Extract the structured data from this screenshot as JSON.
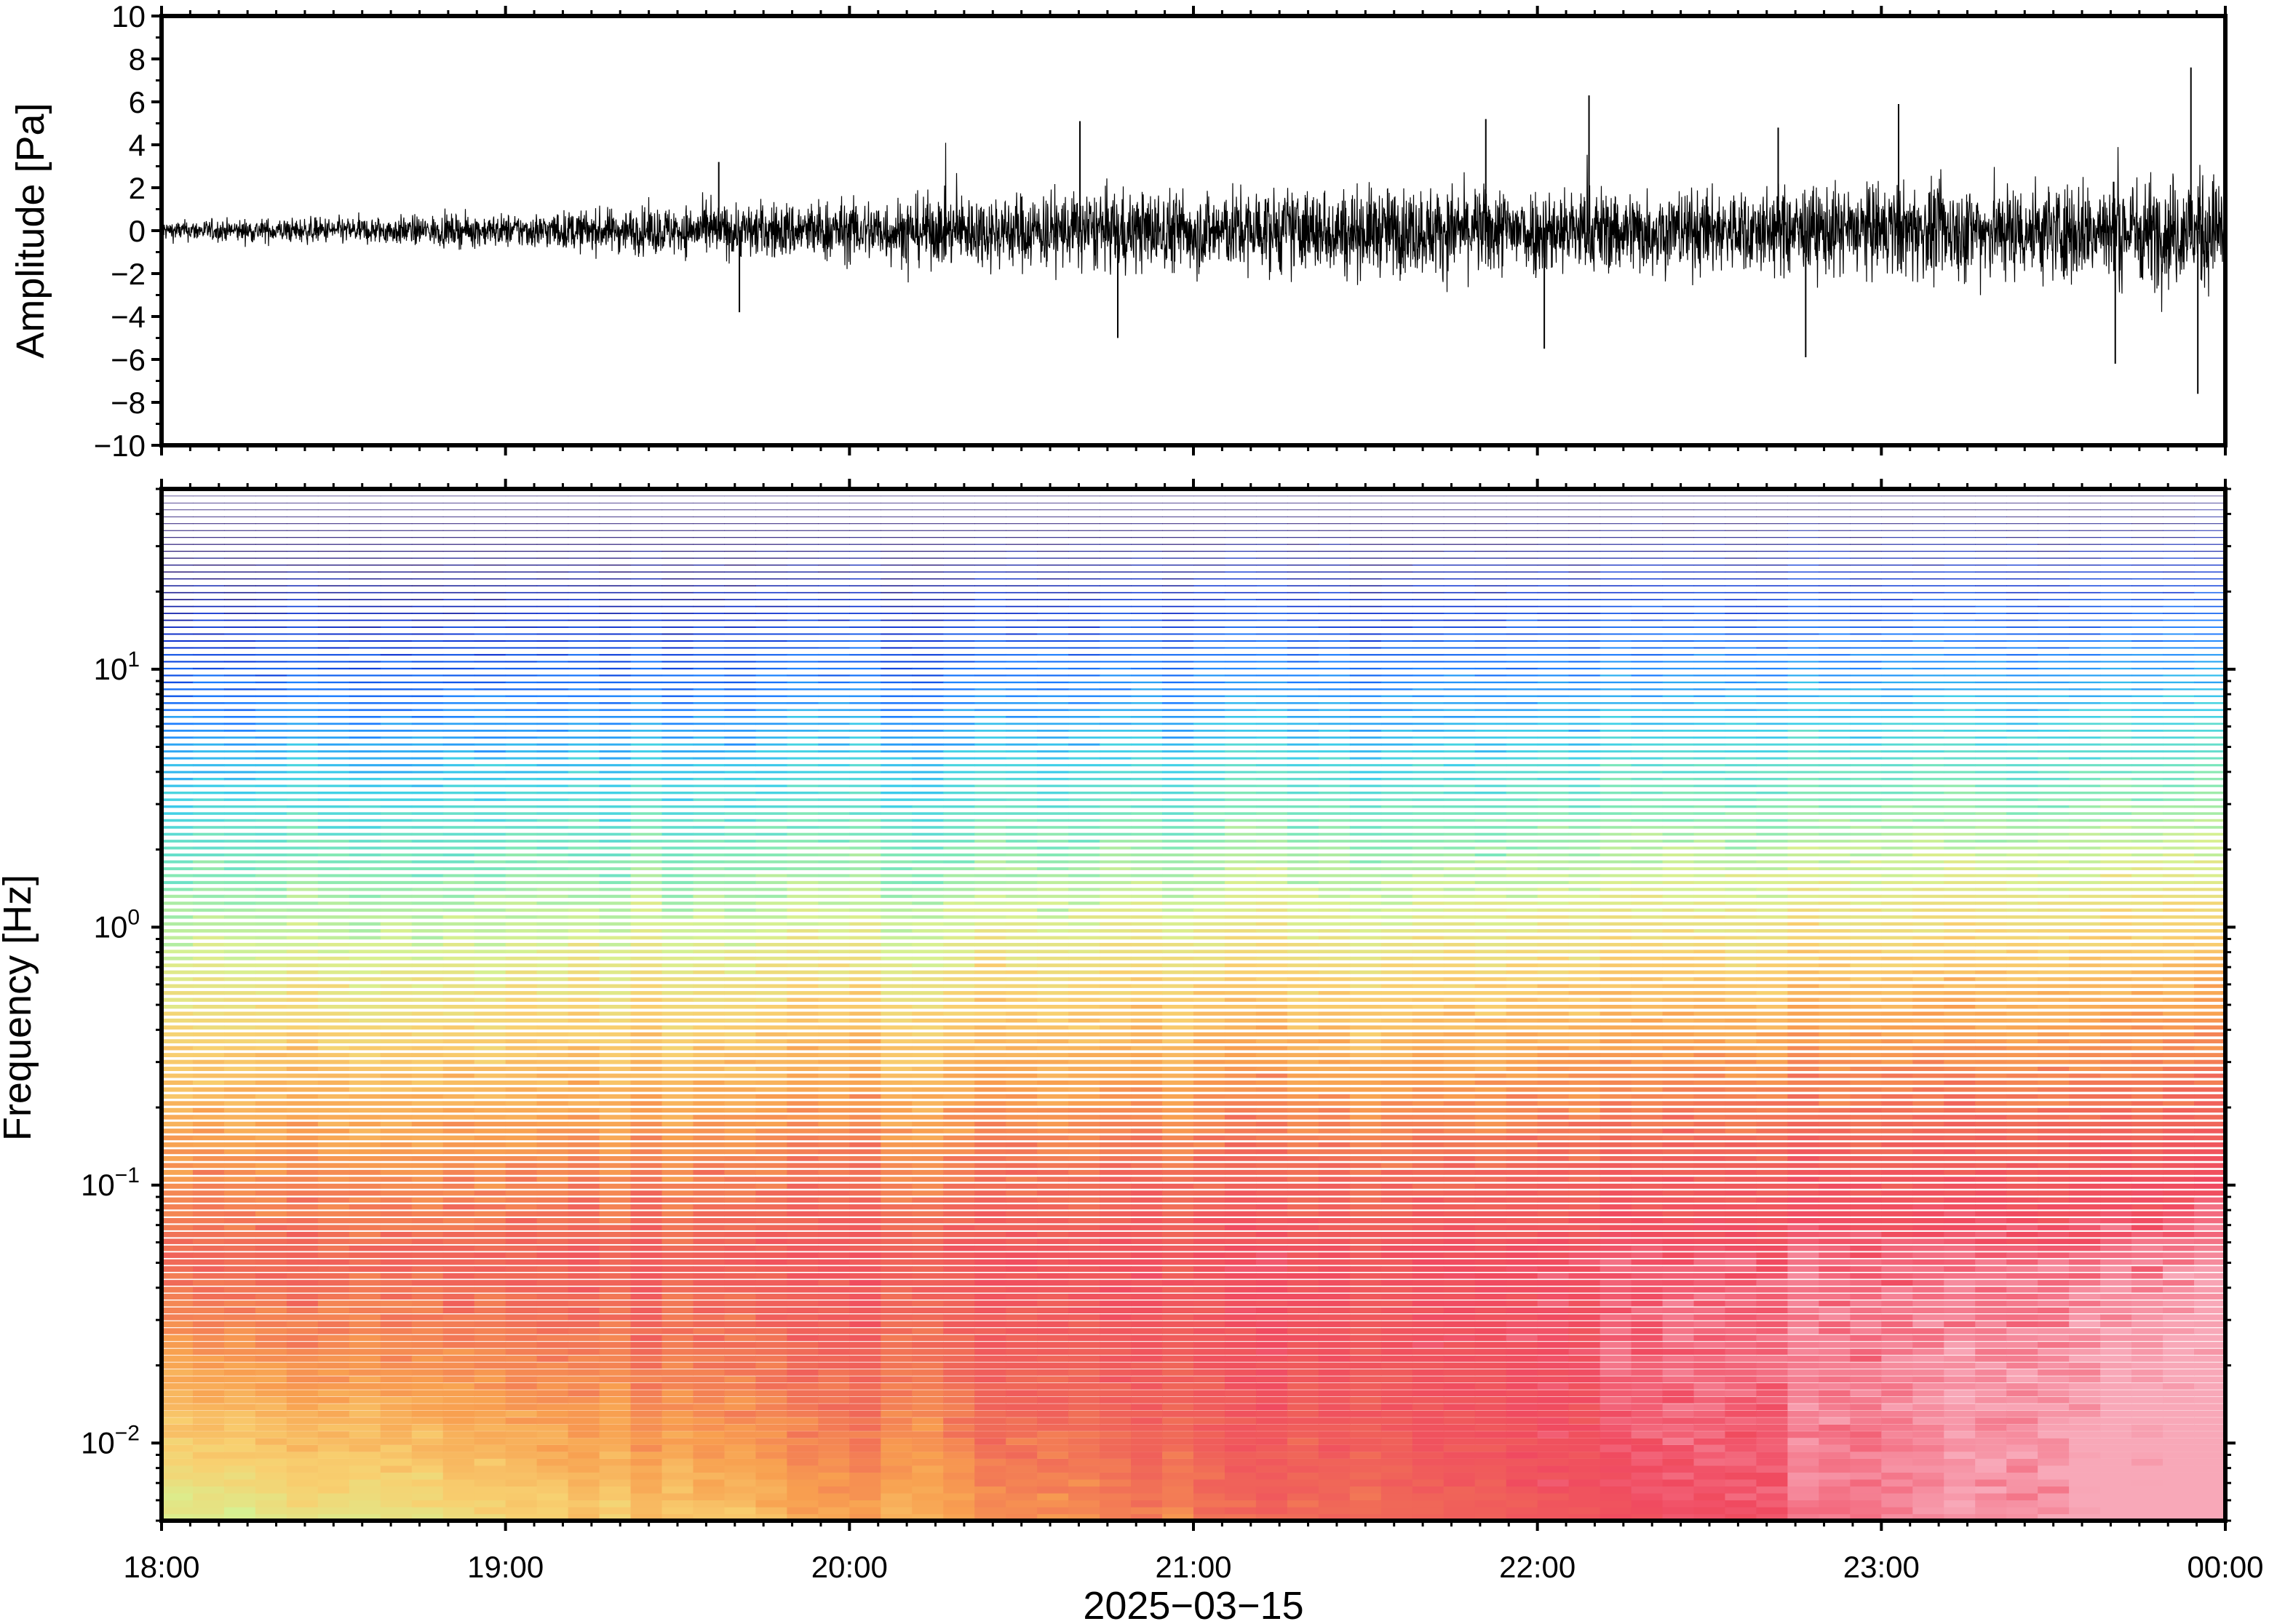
{
  "chart_data": [
    {
      "type": "line",
      "name": "waveform",
      "ylabel": "Amplitude [Pa]",
      "ylim": [
        -10,
        10
      ],
      "yticks": [
        -10,
        -8,
        -6,
        -4,
        -2,
        0,
        2,
        4,
        6,
        8,
        10
      ],
      "ytick_labels": [
        "−10",
        "−8",
        "−6",
        "−4",
        "−2",
        "0",
        "2",
        "4",
        "6",
        "8",
        "10"
      ],
      "x_hours": [
        18,
        24
      ],
      "line_color": "#000000",
      "envelope": {
        "hours": [
          18.0,
          18.5,
          19.0,
          19.5,
          20.0,
          20.5,
          21.0,
          21.5,
          22.0,
          22.5,
          23.0,
          23.5,
          24.0
        ],
        "half_range_pa": [
          0.6,
          0.8,
          1.0,
          1.5,
          1.9,
          2.3,
          2.5,
          2.6,
          2.7,
          2.5,
          2.8,
          3.0,
          3.5
        ]
      },
      "spikes": [
        {
          "hour": 19.62,
          "value": 3.2
        },
        {
          "hour": 19.68,
          "value": -3.8
        },
        {
          "hour": 20.67,
          "value": 5.1
        },
        {
          "hour": 20.78,
          "value": -5.0
        },
        {
          "hour": 21.85,
          "value": 5.2
        },
        {
          "hour": 22.02,
          "value": -5.5
        },
        {
          "hour": 22.15,
          "value": 6.3
        },
        {
          "hour": 22.7,
          "value": 4.8
        },
        {
          "hour": 23.05,
          "value": 5.9
        },
        {
          "hour": 22.78,
          "value": -5.9
        },
        {
          "hour": 23.68,
          "value": -6.2
        },
        {
          "hour": 23.9,
          "value": 7.6
        },
        {
          "hour": 23.92,
          "value": -7.6
        }
      ]
    },
    {
      "type": "heatmap",
      "name": "spectrogram",
      "ylabel": "Frequency [Hz]",
      "yscale": "log",
      "ylim_hz": [
        0.005,
        50
      ],
      "ytick_values": [
        0.01,
        0.1,
        1,
        10
      ],
      "ytick_labels": [
        {
          "base": "10",
          "exp": "−2"
        },
        {
          "base": "10",
          "exp": "−1"
        },
        {
          "base": "10",
          "exp": "0"
        },
        {
          "base": "10",
          "exp": "1"
        }
      ],
      "colormap": "rainbow (dark blue → cyan → yellow → orange → red → pink)",
      "colormap_stops": [
        "#1a0a6e",
        "#0a2fd0",
        "#1e7fff",
        "#3fd0e8",
        "#7fe8b8",
        "#d8f090",
        "#f8d070",
        "#f8a050",
        "#f06858",
        "#f04a60",
        "#f8a8b8"
      ],
      "time_columns": 66,
      "description_level_trend": "power increases with time and toward low frequencies"
    }
  ],
  "x_axis": {
    "tick_labels": [
      "18:00",
      "19:00",
      "20:00",
      "21:00",
      "22:00",
      "23:00",
      "00:00"
    ],
    "hours": [
      18,
      19,
      20,
      21,
      22,
      23,
      24
    ],
    "date_label": "2025−03−15"
  }
}
